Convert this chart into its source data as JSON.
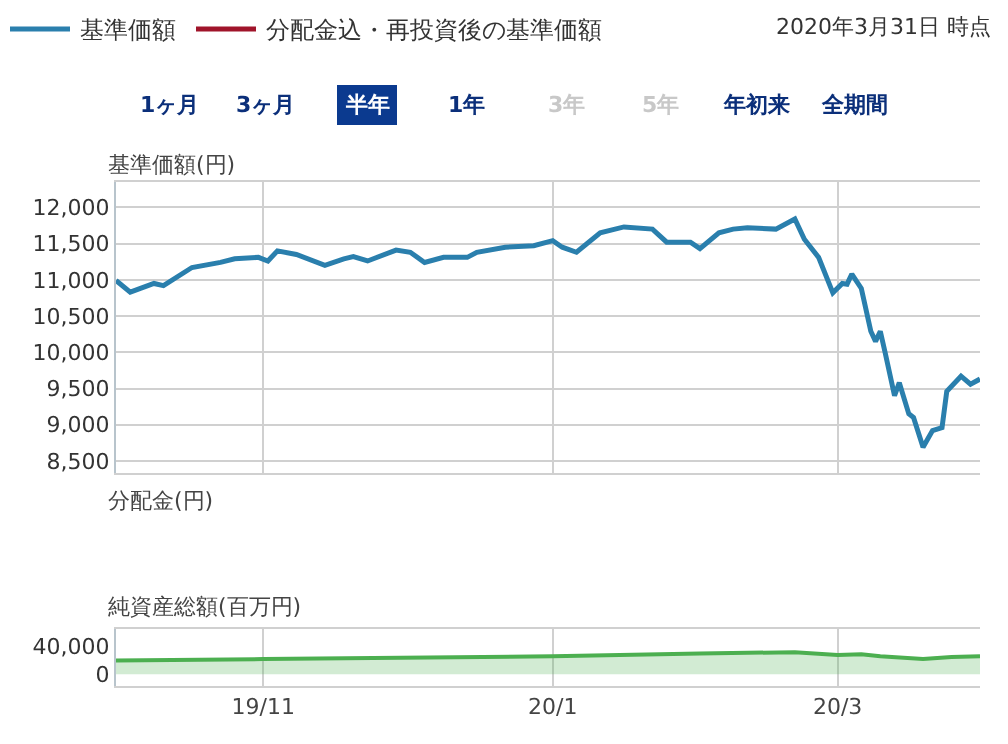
{
  "chart_data": [
    {
      "type": "line",
      "title": "基準価額(円)",
      "legend": "top left",
      "annotations": [
        "2020年3月31日 時点",
        "1ヶ月",
        "3ヶ月",
        "半年",
        "1年",
        "3年",
        "5年",
        "年初来",
        "全期間"
      ],
      "x": [
        "2019-10-01",
        "2019-10-04",
        "2019-10-09",
        "2019-10-11",
        "2019-10-17",
        "2019-10-23",
        "2019-10-26",
        "2019-10-31",
        "2019-11-02",
        "2019-11-04",
        "2019-11-08",
        "2019-11-14",
        "2019-11-18",
        "2019-11-20",
        "2019-11-23",
        "2019-11-29",
        "2019-12-02",
        "2019-12-05",
        "2019-12-09",
        "2019-12-14",
        "2019-12-16",
        "2019-12-22",
        "2019-12-28",
        "2020-01-01",
        "2020-01-03",
        "2020-01-06",
        "2020-01-11",
        "2020-01-16",
        "2020-01-22",
        "2020-01-25",
        "2020-01-30",
        "2020-02-01",
        "2020-02-05",
        "2020-02-08",
        "2020-02-11",
        "2020-02-17",
        "2020-02-21",
        "2020-02-23",
        "2020-02-26",
        "2020-02-29",
        "2020-03-02",
        "2020-03-03",
        "2020-03-04",
        "2020-03-06",
        "2020-03-08",
        "2020-03-09",
        "2020-03-10",
        "2020-03-11",
        "2020-03-13",
        "2020-03-14",
        "2020-03-16",
        "2020-03-17",
        "2020-03-19",
        "2020-03-21",
        "2020-03-23",
        "2020-03-24",
        "2020-03-27",
        "2020-03-29",
        "2020-03-31"
      ],
      "series": [
        {
          "name": "基準価額",
          "color": "#2a7fad",
          "values": [
            10990,
            10830,
            10950,
            10920,
            11170,
            11240,
            11290,
            11310,
            11260,
            11400,
            11350,
            11200,
            11290,
            11320,
            11260,
            11410,
            11380,
            11240,
            11310,
            11310,
            11380,
            11450,
            11470,
            11540,
            11450,
            11380,
            11650,
            11730,
            11700,
            11520,
            11520,
            11430,
            11650,
            11700,
            11720,
            11700,
            11840,
            11560,
            11310,
            10820,
            10950,
            10940,
            11080,
            10880,
            10290,
            10150,
            10290,
            10000,
            9400,
            9580,
            9150,
            9100,
            8690,
            8920,
            8960,
            9460,
            9670,
            9560,
            9630
          ]
        },
        {
          "name": "分配金込・再投資後の基準価額",
          "color": "#a0142a",
          "values": [
            null,
            null,
            null,
            null,
            null,
            null,
            null,
            null,
            null,
            null,
            null,
            null,
            null,
            null,
            null,
            null,
            null,
            null,
            null,
            null,
            null,
            null,
            null,
            null,
            null,
            null,
            null,
            null,
            null,
            null,
            null,
            null,
            null,
            null,
            null,
            null,
            null,
            null,
            null,
            null,
            null,
            null,
            null,
            null,
            null,
            null,
            null,
            null,
            null,
            null,
            null,
            null,
            null,
            null,
            null,
            null,
            null,
            null,
            null
          ]
        }
      ],
      "xlim": [
        "2019-10-01",
        "2020-03-31"
      ],
      "xticks": [
        {
          "value": "2019-11-01",
          "label": null
        },
        {
          "value": "2020-01-01",
          "label": null
        },
        {
          "value": "2020-03-01",
          "label": null
        }
      ],
      "ylim": [
        8340,
        12350
      ],
      "yticks": [
        {
          "value": 8500,
          "label": "8,500"
        },
        {
          "value": 9000,
          "label": "9,000"
        },
        {
          "value": 9500,
          "label": "9,500"
        },
        {
          "value": 10000,
          "label": "10,000"
        },
        {
          "value": 10500,
          "label": "10,500"
        },
        {
          "value": 11000,
          "label": "11,000"
        },
        {
          "value": 11500,
          "label": "11,500"
        },
        {
          "value": 12000,
          "label": "12,000"
        }
      ],
      "grid": true,
      "tick_labels": "y"
    },
    {
      "type": "other",
      "title": "分配金(円)"
    },
    {
      "type": "area",
      "title": "純資産総額(百万円)",
      "x": [
        "2019-10-01",
        "2019-11-01",
        "2020-01-01",
        "2020-02-01",
        "2020-02-21",
        "2020-03-01",
        "2020-03-06",
        "2020-03-10",
        "2020-03-19",
        "2020-03-25",
        "2020-03-31"
      ],
      "series": [
        {
          "color": "#4caf50",
          "values": [
            20000,
            22000,
            26000,
            30000,
            32000,
            28000,
            29000,
            26000,
            22000,
            25000,
            26000
          ]
        }
      ],
      "xlim": [
        "2019-10-01",
        "2020-03-31"
      ],
      "xticks": [
        {
          "value": "2019-11-01",
          "label": "19/11"
        },
        {
          "value": "2020-01-01",
          "label": "20/1"
        },
        {
          "value": "2020-03-01",
          "label": "20/3"
        }
      ],
      "ylim": [
        -17000,
        66000
      ],
      "yticks": [
        {
          "value": 0,
          "label": "0"
        },
        {
          "value": 40000,
          "label": "40,000"
        }
      ],
      "grid": "x"
    }
  ]
}
